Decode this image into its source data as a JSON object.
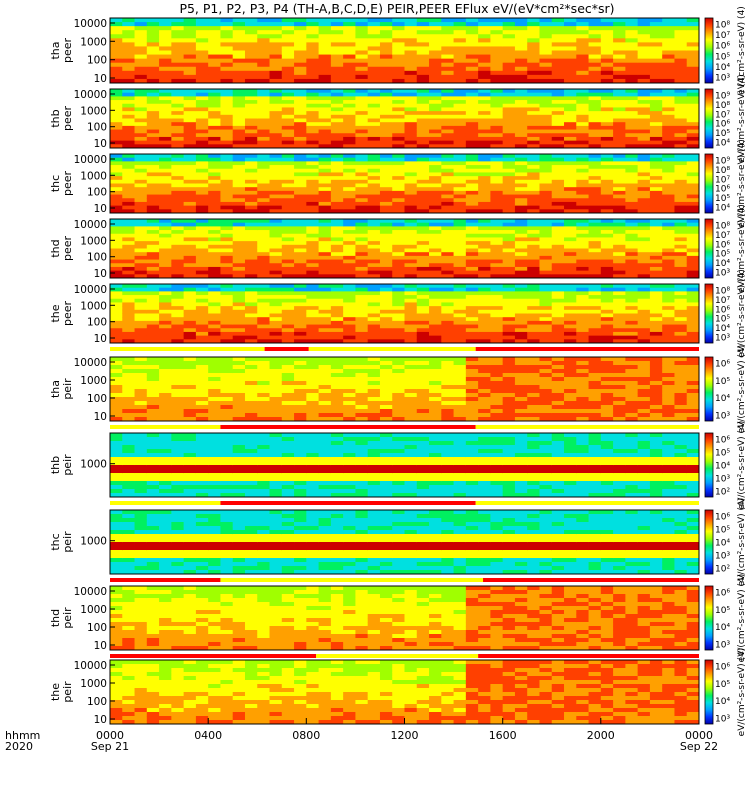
{
  "title": "P5, P1, P2, P3, P4 (TH-A,B,C,D,E) PEIR,PEER EFlux eV/(eV*cm²*sec*sr)",
  "colors": {
    "colormap": [
      "#0000aa",
      "#0033ff",
      "#00a0ff",
      "#00e0e0",
      "#00f060",
      "#a0ff00",
      "#ffff00",
      "#ffa000",
      "#ff4000",
      "#cc0000"
    ],
    "mode_bar_high": "#ff0000",
    "mode_bar_low": "#ffff00"
  },
  "x_axis": {
    "row_labels": [
      "hhmm",
      "2020"
    ],
    "ticks": [
      {
        "hhmm": "0000",
        "date": "Sep 21",
        "hour": 0
      },
      {
        "hhmm": "0400",
        "date": "",
        "hour": 4
      },
      {
        "hhmm": "0800",
        "date": "",
        "hour": 8
      },
      {
        "hhmm": "1200",
        "date": "",
        "hour": 12
      },
      {
        "hhmm": "1600",
        "date": "",
        "hour": 16
      },
      {
        "hhmm": "2000",
        "date": "",
        "hour": 20
      },
      {
        "hhmm": "0000",
        "date": "Sep 22",
        "hour": 24
      }
    ],
    "range_hours": [
      0,
      24
    ]
  },
  "chart_data": {
    "type": "heatmap",
    "title": "P5, P1, P2, P3, P4 (TH-A,B,C,D,E) PEIR,PEER EFlux eV/(eV*cm²*sec*sr)",
    "x_range": [
      "2020-09-21 00:00",
      "2020-09-22 00:00"
    ],
    "y_scale": "log",
    "panels": [
      {
        "probe": "tha",
        "instrument": "peer",
        "ylabel": [
          "tha",
          "peer"
        ],
        "yticks": [
          "10000",
          "1000",
          "100",
          "10"
        ],
        "colorbar_ticks": [
          "10⁸",
          "10⁷",
          "10⁶",
          "10⁵",
          "10⁴",
          "10³"
        ],
        "colorbar_label": "eV/(cm²-s-sr-eV) (4)",
        "mode_bar": false
      },
      {
        "probe": "thb",
        "instrument": "peer",
        "ylabel": [
          "thb",
          "peer"
        ],
        "yticks": [
          "10000",
          "1000",
          "100",
          "10"
        ],
        "colorbar_ticks": [
          "10⁹",
          "10⁸",
          "10⁷",
          "10⁶",
          "10⁵",
          "10⁴"
        ],
        "colorbar_label": "eV/(cm²-s-sr-eV) (4)",
        "mode_bar": false
      },
      {
        "probe": "thc",
        "instrument": "peer",
        "ylabel": [
          "thc",
          "peer"
        ],
        "yticks": [
          "10000",
          "1000",
          "100",
          "10"
        ],
        "colorbar_ticks": [
          "10⁹",
          "10⁸",
          "10⁷",
          "10⁶",
          "10⁵",
          "10⁴"
        ],
        "colorbar_label": "eV/(cm²-s-sr-eV) (4)",
        "mode_bar": false
      },
      {
        "probe": "thd",
        "instrument": "peer",
        "ylabel": [
          "thd",
          "peer"
        ],
        "yticks": [
          "10000",
          "1000",
          "100",
          "10"
        ],
        "colorbar_ticks": [
          "10⁸",
          "10⁷",
          "10⁶",
          "10⁵",
          "10⁴",
          "10³"
        ],
        "colorbar_label": "eV/(cm²-s-sr-eV) (4)",
        "mode_bar": false
      },
      {
        "probe": "the",
        "instrument": "peer",
        "ylabel": [
          "the",
          "peer"
        ],
        "yticks": [
          "10000",
          "1000",
          "100",
          "10"
        ],
        "colorbar_ticks": [
          "10⁸",
          "10⁷",
          "10⁶",
          "10⁵",
          "10⁴",
          "10³"
        ],
        "colorbar_label": "eV/(cm²-s-sr-eV) (4)",
        "mode_bar": true
      },
      {
        "probe": "tha",
        "instrument": "peir",
        "ylabel": [
          "tha",
          "peir"
        ],
        "yticks": [
          "10000",
          "1000",
          "100",
          "10"
        ],
        "colorbar_ticks": [
          "10⁶",
          "10⁵",
          "10⁴",
          "10³"
        ],
        "colorbar_label": "eV/(cm²-s-sr-eV) (4)",
        "mode_bar": true
      },
      {
        "probe": "thb",
        "instrument": "peir",
        "ylabel": [
          "thb",
          "peir"
        ],
        "yticks": [
          "1000"
        ],
        "colorbar_ticks": [
          "10⁶",
          "10⁵",
          "10⁴",
          "10³",
          "10²"
        ],
        "colorbar_label": "eV/(cm²-s-sr-eV) (4)",
        "mode_bar": true
      },
      {
        "probe": "thc",
        "instrument": "peir",
        "ylabel": [
          "thc",
          "peir"
        ],
        "yticks": [
          "1000"
        ],
        "colorbar_ticks": [
          "10⁶",
          "10⁵",
          "10⁴",
          "10³",
          "10²"
        ],
        "colorbar_label": "eV/(cm²-s-sr-eV) (4)",
        "mode_bar": true
      },
      {
        "probe": "thd",
        "instrument": "peir",
        "ylabel": [
          "thd",
          "peir"
        ],
        "yticks": [
          "10000",
          "1000",
          "100",
          "10"
        ],
        "colorbar_ticks": [
          "10⁶",
          "10⁵",
          "10⁴",
          "10³"
        ],
        "colorbar_label": "eV/(cm²-s-sr-eV) (4)",
        "mode_bar": true
      },
      {
        "probe": "the",
        "instrument": "peir",
        "ylabel": [
          "the",
          "peir"
        ],
        "yticks": [
          "10000",
          "1000",
          "100",
          "10"
        ],
        "colorbar_ticks": [
          "10⁶",
          "10⁵",
          "10⁴",
          "10³"
        ],
        "colorbar_label": "eV/(cm²-s-sr-eV) (4)",
        "mode_bar": false
      }
    ],
    "mode_bars": [
      {
        "after_panel": 4,
        "segments": [
          [
            0,
            6.3,
            "low"
          ],
          [
            6.3,
            8.1,
            "high"
          ],
          [
            8.1,
            14.9,
            "low"
          ],
          [
            14.9,
            24,
            "high"
          ]
        ]
      },
      {
        "after_panel": 5,
        "segments": [
          [
            0,
            4.5,
            "low"
          ],
          [
            4.5,
            14.9,
            "high"
          ],
          [
            14.9,
            24,
            "low"
          ]
        ]
      },
      {
        "after_panel": 6,
        "segments": [
          [
            0,
            4.5,
            "low"
          ],
          [
            4.5,
            14.9,
            "high"
          ],
          [
            14.9,
            24,
            "low"
          ]
        ]
      },
      {
        "after_panel": 7,
        "segments": [
          [
            0,
            4.5,
            "high"
          ],
          [
            4.5,
            15.2,
            "low"
          ],
          [
            15.2,
            24,
            "high"
          ]
        ]
      },
      {
        "after_panel": 8,
        "segments": [
          [
            0,
            8.4,
            "high"
          ],
          [
            8.4,
            15.0,
            "low"
          ],
          [
            15.0,
            24,
            "high"
          ]
        ]
      }
    ]
  }
}
